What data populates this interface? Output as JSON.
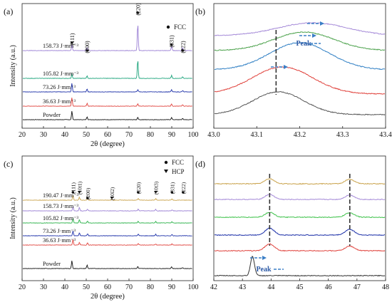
{
  "chart_data": [
    {
      "panel": "(a)",
      "type": "line",
      "xlabel": "2θ (degree)",
      "ylabel": "Intensity (a.u.)",
      "xlim": [
        20,
        100
      ],
      "xticks": [
        "20",
        "30",
        "40",
        "50",
        "60",
        "70",
        "80",
        "90",
        "100"
      ],
      "legend": [
        {
          "marker": "circle",
          "label": "FCC"
        }
      ],
      "series": [
        {
          "name": "Powder",
          "color": "#111111",
          "peaks": [
            [
              43.3,
              1.0
            ],
            [
              50.4,
              0.35
            ],
            [
              74.1,
              0.3
            ],
            [
              89.9,
              0.25
            ],
            [
              95.1,
              0.15
            ]
          ]
        },
        {
          "name": "36.63 J·mm⁻³",
          "color": "#e0423c",
          "peaks": [
            [
              43.3,
              1.0
            ],
            [
              50.4,
              0.35
            ],
            [
              74.1,
              0.3
            ],
            [
              89.9,
              0.25
            ],
            [
              95.1,
              0.15
            ]
          ]
        },
        {
          "name": "73.26 J·mm⁻³",
          "color": "#1b2fa8",
          "peaks": [
            [
              43.3,
              1.0
            ],
            [
              50.4,
              0.35
            ],
            [
              74.1,
              0.3
            ],
            [
              89.9,
              0.25
            ],
            [
              95.1,
              0.15
            ]
          ]
        },
        {
          "name": "105.82 J·mm⁻³",
          "color": "#1aa37a",
          "peaks": [
            [
              43.3,
              0.5
            ],
            [
              50.4,
              0.3
            ],
            [
              74.1,
              2.2
            ],
            [
              89.9,
              0.35
            ],
            [
              95.1,
              0.2
            ]
          ]
        },
        {
          "name": "158.73 J·mm⁻³",
          "color": "#9a7fd4",
          "peaks": [
            [
              43.3,
              0.7
            ],
            [
              50.4,
              0.35
            ],
            [
              74.1,
              3.2
            ],
            [
              89.9,
              0.5
            ],
            [
              95.1,
              0.35
            ]
          ]
        }
      ],
      "annotations": [
        {
          "text": "(111)",
          "x": 43.3
        },
        {
          "text": "(200)",
          "x": 50.4
        },
        {
          "text": "(220)",
          "x": 74.1
        },
        {
          "text": "(331)",
          "x": 89.9
        },
        {
          "text": "(222)",
          "x": 95.1
        }
      ]
    },
    {
      "panel": "(b)",
      "type": "line",
      "xlim": [
        43.0,
        43.4
      ],
      "xticks": [
        "43.0",
        "43.1",
        "43.2",
        "43.3",
        "43.4"
      ],
      "series": [
        {
          "color": "#555555",
          "center": 43.15,
          "width": 0.06
        },
        {
          "color": "#e0423c",
          "center": 43.16,
          "width": 0.07
        },
        {
          "color": "#2f7fc4",
          "center": 43.2,
          "width": 0.07
        },
        {
          "color": "#4ca24c",
          "center": 43.21,
          "width": 0.07
        },
        {
          "color": "#a58ad8",
          "center": 43.23,
          "width": 0.08
        }
      ],
      "dashed_line_x": 43.145,
      "annotations": [
        {
          "text": "Peak"
        }
      ]
    },
    {
      "panel": "(c)",
      "type": "line",
      "xlabel": "2θ (degree)",
      "ylabel": "Intensity (a.u.)",
      "xlim": [
        20,
        100
      ],
      "xticks": [
        "20",
        "30",
        "40",
        "50",
        "60",
        "70",
        "80",
        "90",
        "100"
      ],
      "legend": [
        {
          "marker": "circle",
          "label": "FCC"
        },
        {
          "marker": "triangle",
          "label": "HCP"
        }
      ],
      "series": [
        {
          "name": "Powder",
          "color": "#111111",
          "peaks": [
            [
              43.3,
              1.6
            ],
            [
              50.4,
              0.7
            ],
            [
              74.1,
              0.4
            ],
            [
              89.9,
              0.35
            ],
            [
              95.1,
              0.2
            ]
          ]
        },
        {
          "name": "36.63 J·mm⁻³",
          "color": "#e0423c",
          "peaks": [
            [
              43.8,
              1.1
            ],
            [
              46.8,
              0.5
            ],
            [
              50.6,
              0.5
            ],
            [
              74.3,
              0.3
            ],
            [
              82.5,
              0.2
            ],
            [
              90.1,
              0.25
            ]
          ]
        },
        {
          "name": "73.26 J·mm⁻³",
          "color": "#1b2fa8",
          "peaks": [
            [
              43.8,
              1.0
            ],
            [
              46.8,
              0.6
            ],
            [
              50.6,
              0.4
            ],
            [
              74.3,
              0.35
            ],
            [
              82.5,
              0.3
            ],
            [
              90.1,
              0.25
            ]
          ]
        },
        {
          "name": "105.82 J·mm⁻³",
          "color": "#27b046",
          "peaks": [
            [
              43.8,
              0.9
            ],
            [
              46.8,
              0.7
            ],
            [
              50.6,
              0.4
            ],
            [
              74.3,
              0.35
            ],
            [
              82.5,
              0.3
            ],
            [
              90.1,
              0.25
            ]
          ]
        },
        {
          "name": "158.73 J·mm⁻³",
          "color": "#9a7fd4",
          "peaks": [
            [
              43.8,
              0.9
            ],
            [
              46.8,
              0.7
            ],
            [
              50.6,
              0.35
            ],
            [
              74.3,
              0.35
            ],
            [
              82.5,
              0.3
            ],
            [
              90.1,
              0.25
            ]
          ]
        },
        {
          "name": "190.47 J·mm⁻³",
          "color": "#c9a24a",
          "peaks": [
            [
              43.8,
              1.0
            ],
            [
              46.8,
              0.6
            ],
            [
              50.6,
              0.35
            ],
            [
              62.0,
              0.15
            ],
            [
              74.3,
              0.35
            ],
            [
              82.5,
              0.35
            ],
            [
              90.1,
              0.25
            ]
          ]
        }
      ],
      "annotations": [
        {
          "text": "(111)",
          "x": 43.8
        },
        {
          "text": "(10ī1)",
          "x": 46.8
        },
        {
          "text": "(200)",
          "x": 50.6
        },
        {
          "text": "(10ī2)",
          "x": 62.0
        },
        {
          "text": "(220)",
          "x": 74.3
        },
        {
          "text": "(10ī3)",
          "x": 82.5
        },
        {
          "text": "(331)",
          "x": 90.1
        },
        {
          "text": "(222)",
          "x": 95.3
        }
      ]
    },
    {
      "panel": "(d)",
      "type": "line",
      "xlim": [
        42,
        48
      ],
      "xticks": [
        "42",
        "43",
        "44",
        "45",
        "46",
        "47",
        "48"
      ],
      "series": [
        {
          "color": "#333333",
          "peaks": [
            [
              43.35,
              1.0
            ]
          ]
        },
        {
          "color": "#e0423c",
          "peaks": [
            [
              43.95,
              0.6
            ],
            [
              46.75,
              0.4
            ]
          ]
        },
        {
          "color": "#1b2fa8",
          "peaks": [
            [
              43.95,
              0.6
            ],
            [
              46.75,
              0.5
            ]
          ]
        },
        {
          "color": "#3ec24a",
          "peaks": [
            [
              43.95,
              0.5
            ],
            [
              46.75,
              0.45
            ]
          ]
        },
        {
          "color": "#a58ad8",
          "peaks": [
            [
              43.95,
              0.5
            ],
            [
              46.75,
              0.45
            ]
          ]
        },
        {
          "color": "#c9a24a",
          "peaks": [
            [
              43.95,
              0.5
            ],
            [
              46.75,
              0.45
            ]
          ]
        }
      ],
      "dashed_lines_x": [
        43.95,
        46.75
      ],
      "annotations": [
        {
          "text": "Peak"
        }
      ]
    }
  ]
}
